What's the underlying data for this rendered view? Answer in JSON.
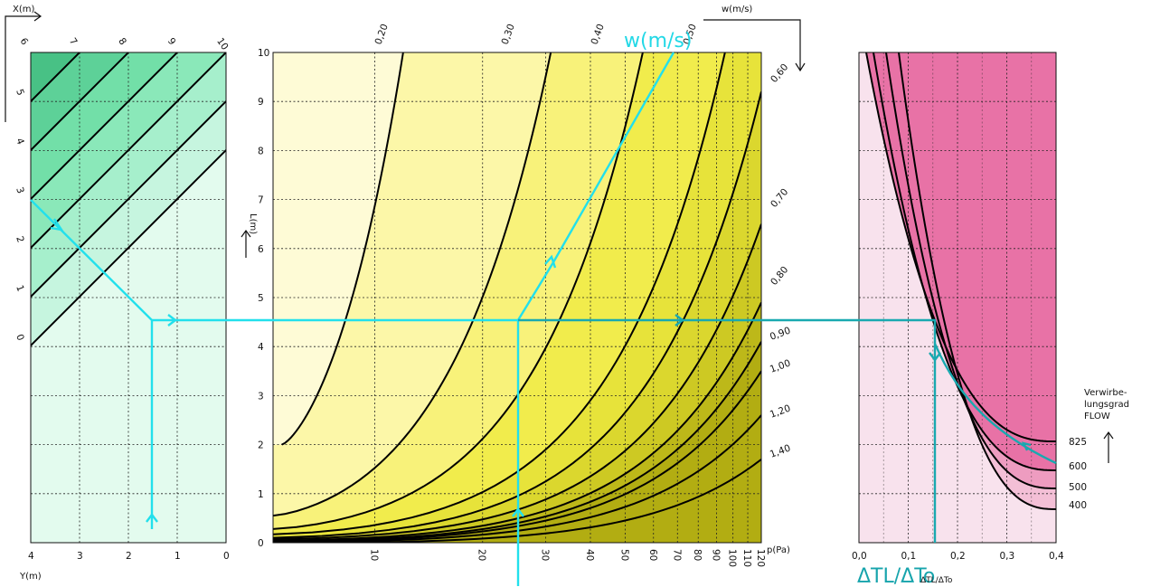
{
  "chart_data": [
    {
      "type": "line",
      "panel": "left",
      "x_axis_label": "X(m)",
      "x_ticks": [
        "6",
        "7",
        "8",
        "9",
        "10"
      ],
      "y_axis_label": "Y(m)",
      "y_ticks": [
        "4",
        "3",
        "2",
        "1",
        "0"
      ],
      "diagonal_scale_ticks": [
        "5",
        "4",
        "3",
        "2",
        "1",
        "0"
      ],
      "xlim": [
        4,
        0
      ],
      "ylim": [
        0,
        10
      ],
      "colors": [
        "#e3fbee",
        "#c6f5df",
        "#a6efcc",
        "#8ae8b9",
        "#72dfa8",
        "#5dd198",
        "#48c185",
        "#36ac72",
        "#2c9a66"
      ]
    },
    {
      "type": "line",
      "panel": "middle",
      "x_axis_label": "p(Pa)",
      "x_ticks": [
        "10",
        "20",
        "30",
        "40",
        "50",
        "60",
        "70",
        "80",
        "90",
        "100",
        "110",
        "120"
      ],
      "y_axis_label": "L(m)",
      "y_ticks": [
        "0",
        "1",
        "2",
        "3",
        "4",
        "5",
        "6",
        "7",
        "8",
        "9",
        "10"
      ],
      "ylim": [
        0,
        10
      ],
      "x_scale": "log",
      "top_axis_label": "w(m/s)",
      "curve_labels": [
        "0,20",
        "0,30",
        "0,40",
        "0,50",
        "0,60",
        "0,70",
        "0,80",
        "0,90",
        "1,00",
        "1,20",
        "1,40"
      ],
      "series": [
        {
          "name": "0,20",
          "x": [
            5.5,
            12
          ],
          "y": [
            2,
            10
          ]
        },
        {
          "name": "0,30",
          "x": [
            5.2,
            31
          ],
          "y": [
            0.55,
            10
          ]
        },
        {
          "name": "0,40",
          "x": [
            5.2,
            56
          ],
          "y": [
            0.28,
            10
          ]
        },
        {
          "name": "0,50",
          "x": [
            5.2,
            95
          ],
          "y": [
            0.17,
            10
          ]
        },
        {
          "name": "0,60",
          "x": [
            5.2,
            120
          ],
          "y": [
            0.1,
            9.2
          ]
        },
        {
          "name": "0,70",
          "x": [
            5.2,
            120
          ],
          "y": [
            0.07,
            6.5
          ]
        },
        {
          "name": "0,80",
          "x": [
            5.2,
            120
          ],
          "y": [
            0.04,
            4.9
          ]
        },
        {
          "name": "0,90",
          "x": [
            5.2,
            120
          ],
          "y": [
            0.02,
            4.1
          ]
        },
        {
          "name": "1,00",
          "x": [
            5.2,
            120
          ],
          "y": [
            0.01,
            3.5
          ]
        },
        {
          "name": "1,20",
          "x": [
            5.2,
            120
          ],
          "y": [
            0.0,
            2.6
          ]
        },
        {
          "name": "1,40",
          "x": [
            8,
            120
          ],
          "y": [
            0.0,
            1.7
          ]
        }
      ],
      "colors": [
        "#fefbd6",
        "#fcf7a8",
        "#f8f27a",
        "#f1ec4c",
        "#e7e33a",
        "#dbd72e",
        "#cdc923",
        "#bdb819",
        "#b2ad12"
      ]
    },
    {
      "type": "line",
      "panel": "right",
      "x_axis_label": "ΔTL/ΔTo",
      "x_sub_label": "ΔTL/ΔTo",
      "x_ticks": [
        "0,0",
        "0,1",
        "0,2",
        "0,3",
        "0,4"
      ],
      "xlim": [
        0,
        0.4
      ],
      "ylim": [
        0,
        10
      ],
      "legend_title": "Verwirbe-\nlungsgrad\nFLOW",
      "series_labels": [
        "825",
        "600",
        "500",
        "400"
      ],
      "colors": [
        "#f8e2ed",
        "#f3bfd6",
        "#ee9cc0",
        "#e872a6"
      ]
    }
  ],
  "example_path": {
    "big_label_w": "w(m/s)",
    "big_label_dt": "ΔTL/ΔTo",
    "color_primary": "#22e0ec",
    "color_secondary": "#19a9b0"
  },
  "labels": {
    "x_m": "X(m)",
    "y_m": "Y(m)",
    "l_m": "L(m)",
    "w_ms": "w(m/s)",
    "p_pa": "p(Pa)",
    "flow_1": "Verwirbe-",
    "flow_2": "lungsgrad",
    "flow_3": "FLOW"
  }
}
